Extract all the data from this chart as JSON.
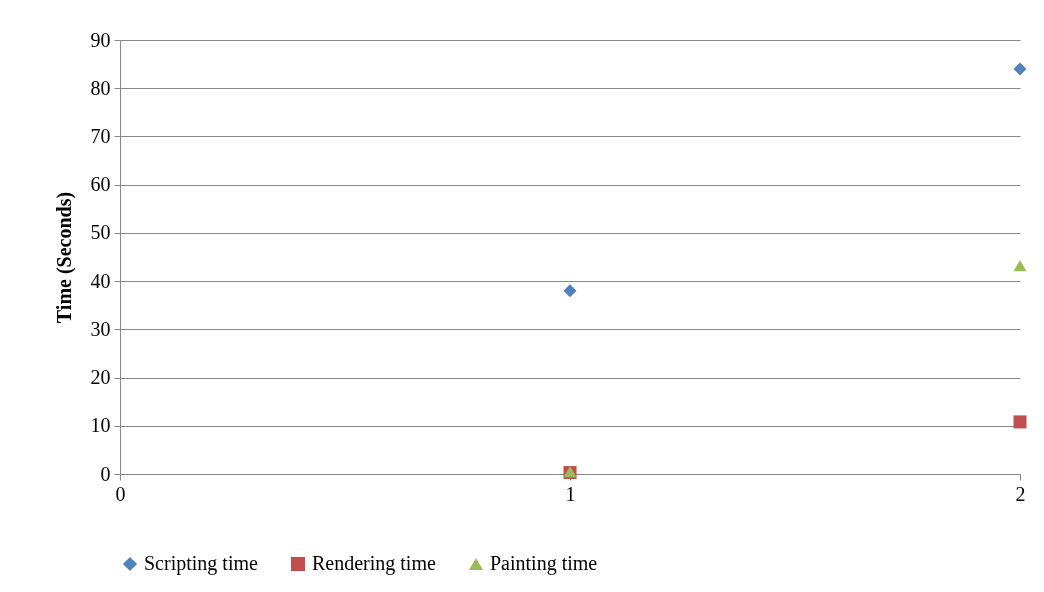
{
  "chart_data": {
    "type": "scatter",
    "ylabel": "Time (Seconds)",
    "x": [
      1,
      2
    ],
    "xlim": [
      0,
      2
    ],
    "xticks": [
      0,
      1,
      2
    ],
    "ylim": [
      0,
      90
    ],
    "yticks": [
      0,
      10,
      20,
      30,
      40,
      50,
      60,
      70,
      80,
      90
    ],
    "grid": "y",
    "legend": "bottom",
    "series": [
      {
        "name": "Scripting time",
        "color": "#4f81bd",
        "marker": "diamond",
        "values": [
          38,
          84
        ]
      },
      {
        "name": "Rendering time",
        "color": "#c0504d",
        "marker": "square",
        "values": [
          0.3,
          10.8
        ]
      },
      {
        "name": "Painting time",
        "color": "#9bbb59",
        "marker": "triangle",
        "values": [
          0.5,
          43.2
        ]
      }
    ]
  }
}
